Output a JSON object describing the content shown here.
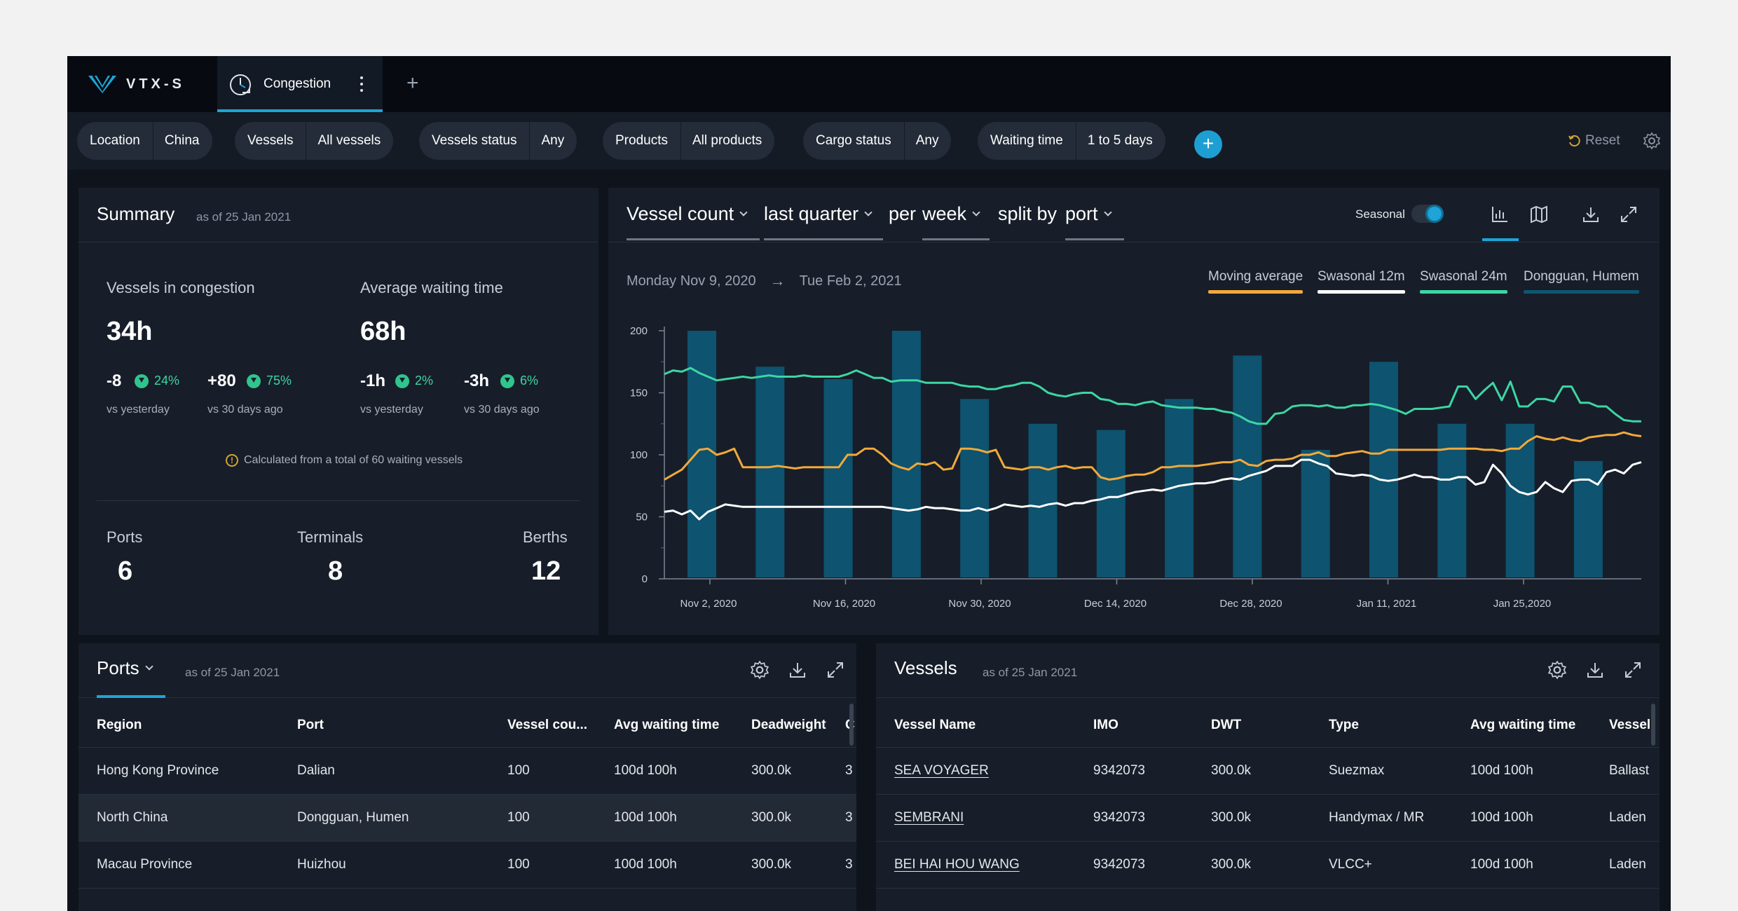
{
  "app": {
    "logo_text": "VTX-S",
    "tab_label": "Congestion"
  },
  "filters": {
    "items": [
      {
        "key": "Location",
        "value": "China"
      },
      {
        "key": "Vessels",
        "value": "All vessels"
      },
      {
        "key": "Vessels status",
        "value": "Any"
      },
      {
        "key": "Products",
        "value": "All products"
      },
      {
        "key": "Cargo status",
        "value": "Any"
      },
      {
        "key": "Waiting time",
        "value": "1 to 5 days"
      }
    ],
    "reset_label": "Reset"
  },
  "summary": {
    "title": "Summary",
    "as_of": "as of 25 Jan 2021",
    "vessels_label": "Vessels in congestion",
    "vessels_value": "34h",
    "avg_label": "Average waiting time",
    "avg_value": "68h",
    "deltas": [
      {
        "value": "-8",
        "pct": "24%",
        "vs": "vs yesterday"
      },
      {
        "value": "+80",
        "pct": "75%",
        "vs": "vs 30 days ago"
      },
      {
        "value": "-1h",
        "pct": "2%",
        "vs": "vs yesterday"
      },
      {
        "value": "-3h",
        "pct": "6%",
        "vs": "vs 30 days ago"
      }
    ],
    "note": "Calculated from a total of 60 waiting vessels",
    "ports_label": "Ports",
    "ports_value": "6",
    "terminals_label": "Terminals",
    "terminals_value": "8",
    "berths_label": "Berths",
    "berths_value": "12"
  },
  "chart_panel": {
    "metric": "Vessel count",
    "period": "last quarter",
    "per_label": "per",
    "granularity": "week",
    "split_label": "split by",
    "split": "port",
    "seasonal_label": "Seasonal",
    "date_from": "Monday Nov 9, 2020",
    "arrow": "→",
    "date_to": "Tue Feb 2, 2021",
    "legend": [
      {
        "name": "Moving average",
        "color": "#f2a93b"
      },
      {
        "name": "Swasonal 12m",
        "color": "#ffffff"
      },
      {
        "name": "Swasonal 24m",
        "color": "#3dd6a3"
      },
      {
        "name": "Dongguan, Humem",
        "color": "#0e5673"
      }
    ]
  },
  "chart_data": {
    "type": "bar",
    "xlabel": "",
    "ylabel": "",
    "ylim": [
      0,
      200
    ],
    "yticks": [
      0,
      50,
      100,
      150,
      200
    ],
    "xticks": [
      "Nov 2, 2020",
      "Nov 16, 2020",
      "Nov 30, 2020",
      "Dec 14, 2020",
      "Dec 28, 2020",
      "Jan 11, 2021",
      "Jan 25,2020"
    ],
    "bar_series": {
      "name": "Dongguan, Humem",
      "values": [
        200,
        171,
        161,
        200,
        145,
        125,
        120,
        145,
        180,
        104,
        175,
        125,
        125,
        95
      ]
    },
    "line_series": [
      {
        "name": "Swasonal 24m",
        "values": [
          165,
          168,
          167,
          170,
          166,
          163,
          160,
          161,
          162,
          163,
          162,
          163,
          164,
          163,
          163,
          163,
          164,
          163,
          163,
          163,
          163,
          165,
          168,
          165,
          162,
          162,
          159,
          160,
          160,
          160,
          158,
          158,
          158,
          158,
          156,
          155,
          155,
          153,
          153,
          155,
          156,
          158,
          158,
          155,
          150,
          148,
          147,
          149,
          150,
          150,
          145,
          144,
          141,
          141,
          140,
          142,
          143,
          140,
          139,
          138,
          138,
          138,
          137,
          137,
          135,
          134,
          131,
          127,
          125,
          125,
          133,
          134,
          139,
          140,
          140,
          139,
          140,
          138,
          138,
          140,
          140,
          141,
          140,
          138,
          136,
          133,
          137,
          137,
          137,
          138,
          139,
          155,
          155,
          145,
          152,
          158,
          144,
          159,
          139,
          139,
          145,
          145,
          143,
          155,
          155,
          142,
          142,
          139,
          139,
          133,
          128,
          127,
          127
        ]
      },
      {
        "name": "Moving average",
        "values": [
          80,
          84,
          88,
          96,
          104,
          105,
          100,
          102,
          105,
          90,
          90,
          90,
          90,
          91,
          90,
          89,
          90,
          90,
          90,
          90,
          90,
          100,
          100,
          105,
          105,
          100,
          93,
          90,
          88,
          93,
          92,
          94,
          88,
          89,
          105,
          105,
          104,
          102,
          104,
          90,
          89,
          88,
          90,
          90,
          88,
          90,
          91,
          89,
          90,
          90,
          82,
          80,
          81,
          83,
          84,
          84,
          86,
          90,
          90,
          91,
          91,
          91,
          92,
          93,
          94,
          94,
          96,
          92,
          91,
          95,
          96,
          96,
          97,
          100,
          100,
          102,
          99,
          99,
          101,
          102,
          103,
          101,
          101,
          104,
          104,
          104,
          104,
          104,
          104,
          104,
          105,
          105,
          105,
          105,
          104,
          104,
          103,
          105,
          105,
          111,
          115,
          113,
          112,
          114,
          112,
          111,
          114,
          115,
          116,
          116,
          118,
          116,
          115
        ]
      },
      {
        "name": "Swasonal 12m",
        "values": [
          54,
          55,
          52,
          55,
          48,
          54,
          57,
          60,
          59,
          58,
          58,
          58,
          58,
          58,
          58,
          58,
          58,
          58,
          58,
          58,
          58,
          58,
          58,
          58,
          58,
          58,
          57,
          56,
          55,
          56,
          58,
          57,
          57,
          56,
          55,
          55,
          57,
          55,
          57,
          60,
          59,
          58,
          59,
          58,
          60,
          61,
          59,
          61,
          61,
          63,
          64,
          66,
          66,
          68,
          70,
          71,
          72,
          71,
          73,
          75,
          76,
          77,
          77,
          78,
          80,
          81,
          80,
          83,
          85,
          87,
          91,
          91,
          91,
          96,
          96,
          93,
          91,
          85,
          84,
          83,
          84,
          83,
          80,
          79,
          80,
          82,
          84,
          82,
          82,
          80,
          80,
          82,
          82,
          76,
          78,
          92,
          85,
          75,
          70,
          68,
          70,
          78,
          73,
          70,
          79,
          80,
          80,
          76,
          86,
          88,
          85,
          92,
          94
        ]
      }
    ]
  },
  "ports_table": {
    "title": "Ports",
    "as_of": "as of 25 Jan 2021",
    "columns": [
      "Region",
      "Port",
      "Vessel cou...",
      "Avg waiting time",
      "Deadweight",
      "C"
    ],
    "rows": [
      [
        "Hong Kong Province",
        "Dalian",
        "100",
        "100d 100h",
        "300.0k",
        "3"
      ],
      [
        "North China",
        "Dongguan, Humen",
        "100",
        "100d 100h",
        "300.0k",
        "3"
      ],
      [
        "Macau Province",
        "Huizhou",
        "100",
        "100d 100h",
        "300.0k",
        "3"
      ]
    ]
  },
  "vessels_table": {
    "title": "Vessels",
    "as_of": "as of 25 Jan 2021",
    "columns": [
      "Vessel Name",
      "IMO",
      "DWT",
      "Type",
      "Avg waiting time",
      "Vessel"
    ],
    "rows": [
      [
        "SEA VOYAGER",
        "9342073",
        "300.0k",
        "Suezmax",
        "100d 100h",
        "Ballast"
      ],
      [
        "SEMBRANI",
        "9342073",
        "300.0k",
        "Handymax / MR",
        "100d 100h",
        "Laden"
      ],
      [
        "BEI HAI HOU WANG",
        "9342073",
        "300.0k",
        "VLCC+",
        "100d 100h",
        "Laden"
      ]
    ]
  }
}
